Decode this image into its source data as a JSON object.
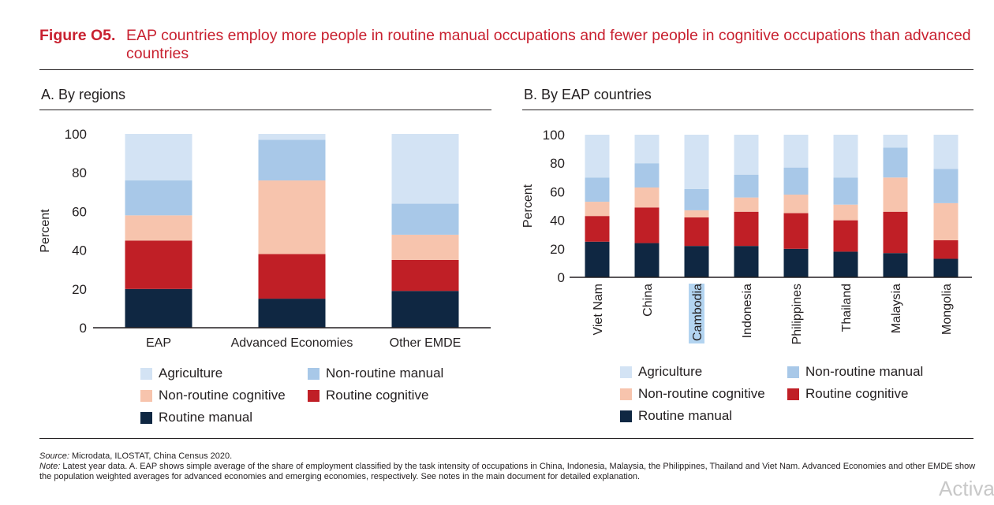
{
  "figure": {
    "label": "Figure O5.",
    "title": "EAP countries employ more people in routine manual occupations and fewer people in cognitive occupations than advanced countries"
  },
  "colors": {
    "Routine manual": "#0f2742",
    "Routine cognitive": "#c01f26",
    "Non-routine cognitive": "#f7c4ad",
    "Non-routine manual": "#a8c8e8",
    "Agriculture": "#d3e3f4"
  },
  "legend_labels": [
    "Agriculture",
    "Non-routine manual",
    "Non-routine cognitive",
    "Routine cognitive",
    "Routine manual"
  ],
  "chart_data": [
    {
      "type": "bar",
      "stacked": true,
      "title": "A. By regions",
      "ylabel": "Percent",
      "ylim": [
        0,
        100
      ],
      "yticks": [
        0,
        20,
        40,
        60,
        80,
        100
      ],
      "legend": "bottom",
      "categories": [
        "EAP",
        "Advanced Economies",
        "Other EMDE"
      ],
      "series": [
        {
          "name": "Routine manual",
          "values": [
            20,
            15,
            19
          ]
        },
        {
          "name": "Routine cognitive",
          "values": [
            25,
            23,
            16
          ]
        },
        {
          "name": "Non-routine cognitive",
          "values": [
            13,
            38,
            13
          ]
        },
        {
          "name": "Non-routine manual",
          "values": [
            18,
            21,
            16
          ]
        },
        {
          "name": "Agriculture",
          "values": [
            24,
            3,
            36
          ]
        }
      ]
    },
    {
      "type": "bar",
      "stacked": true,
      "title": "B. By EAP countries",
      "ylabel": "Percent",
      "ylim": [
        0,
        100
      ],
      "yticks": [
        0,
        20,
        40,
        60,
        80,
        100
      ],
      "legend": "bottom",
      "categories": [
        "Viet Nam",
        "China",
        "Cambodia",
        "Indonesia",
        "Philippines",
        "Thailand",
        "Malaysia",
        "Mongolia"
      ],
      "series": [
        {
          "name": "Routine manual",
          "values": [
            25,
            24,
            22,
            22,
            20,
            18,
            17,
            13
          ]
        },
        {
          "name": "Routine cognitive",
          "values": [
            18,
            25,
            20,
            24,
            25,
            22,
            29,
            13
          ]
        },
        {
          "name": "Non-routine cognitive",
          "values": [
            10,
            14,
            5,
            10,
            13,
            11,
            24,
            26
          ]
        },
        {
          "name": "Non-routine manual",
          "values": [
            17,
            17,
            15,
            16,
            19,
            19,
            21,
            24
          ]
        },
        {
          "name": "Agriculture",
          "values": [
            30,
            20,
            38,
            28,
            23,
            30,
            9,
            24
          ]
        }
      ]
    }
  ],
  "source": {
    "label": "Source:",
    "text": " Microdata, ILOSTAT, China Census 2020."
  },
  "note": {
    "label": "Note:",
    "text": " Latest year data. A. EAP shows simple average of the share of employment classified by the task intensity of occupations in China, Indonesia, Malaysia, the Philippines, Thailand and Viet Nam. Advanced Economies and other EMDE show the population weighted averages for advanced economies and emerging economies, respectively. See notes in the main document for detailed explanation."
  },
  "watermark": "Activa"
}
